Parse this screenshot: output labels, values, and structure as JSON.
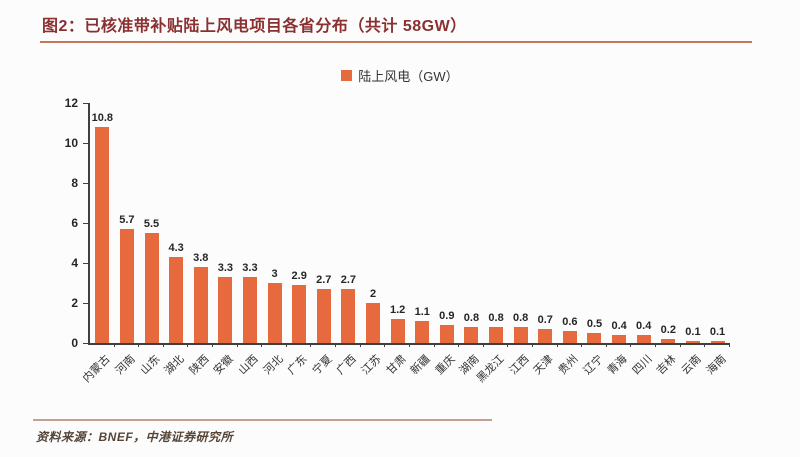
{
  "title": {
    "text": "图2：已核准带补贴陆上风电项目各省分布（共计 58GW）"
  },
  "legend": {
    "label": "陆上风电（GW）"
  },
  "footer": {
    "source": "资料来源：BNEF，中港证券研究所"
  },
  "colors": {
    "bar": "#E7693E",
    "title": "#8A3030",
    "title_underline": "#C4765B",
    "axis": "#3F3F3F",
    "text": "#262626",
    "footer_line": "#C49E90",
    "footer_text": "#564639"
  },
  "chart_data": {
    "type": "bar",
    "title": "已核准带补贴陆上风电项目各省分布（共计 58GW）",
    "legend": "陆上风电（GW）",
    "legend_position": "top-center",
    "categories": [
      "内蒙古",
      "河南",
      "山东",
      "湖北",
      "陕西",
      "安徽",
      "山西",
      "河北",
      "广东",
      "宁夏",
      "广西",
      "江苏",
      "甘肃",
      "新疆",
      "重庆",
      "湖南",
      "黑龙江",
      "江西",
      "天津",
      "贵州",
      "辽宁",
      "青海",
      "四川",
      "吉林",
      "云南",
      "海南"
    ],
    "values": [
      10.8,
      5.7,
      5.5,
      4.3,
      3.8,
      3.3,
      3.3,
      3,
      2.9,
      2.7,
      2.7,
      2,
      1.2,
      1.1,
      0.9,
      0.8,
      0.8,
      0.8,
      0.7,
      0.6,
      0.5,
      0.4,
      0.4,
      0.2,
      0.1,
      0.1
    ],
    "xlabel": "",
    "ylabel": "",
    "ylim": [
      0,
      12
    ],
    "yticks": [
      0,
      2,
      4,
      6,
      8,
      10,
      12
    ],
    "grid": false,
    "bar_color": "#E7693E"
  }
}
